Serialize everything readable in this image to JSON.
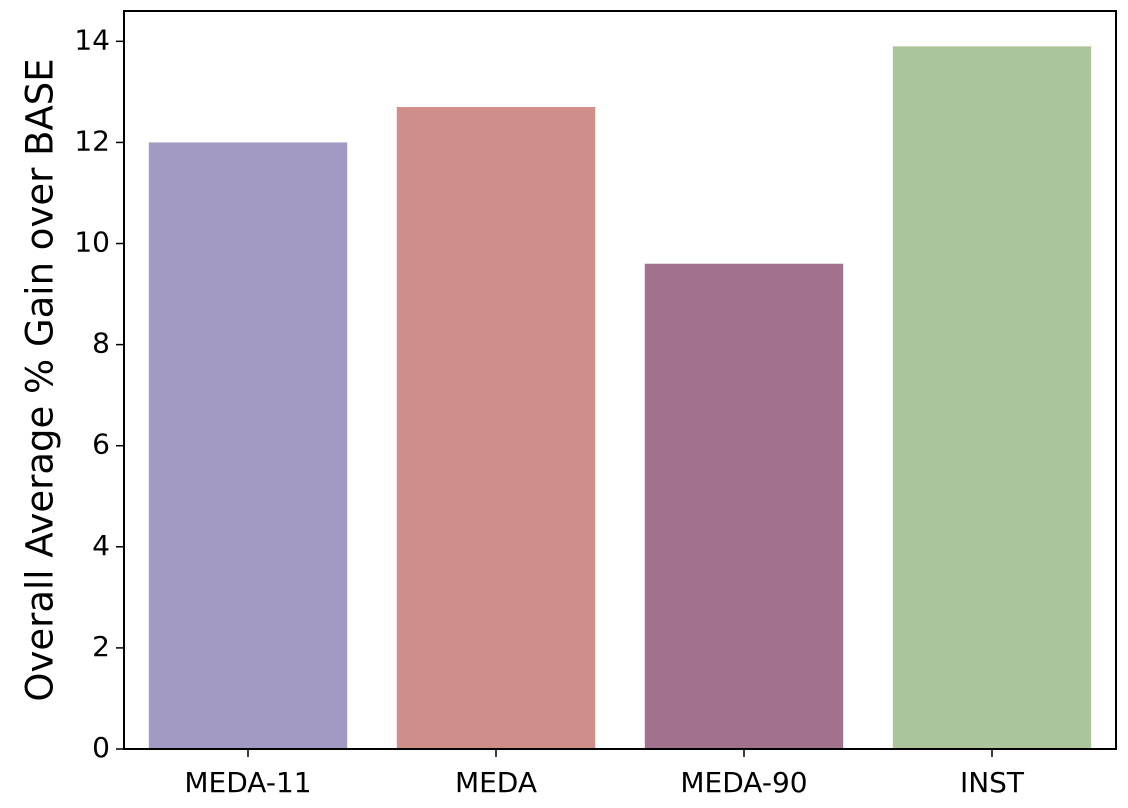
{
  "chart_data": {
    "type": "bar",
    "y_label": "Overall Average % Gain over BASE",
    "categories": [
      "MEDA-11",
      "MEDA",
      "MEDA-90",
      "INST"
    ],
    "values": [
      12.0,
      12.7,
      9.6,
      13.9
    ],
    "colors": [
      "#a29ac3",
      "#cf8e89",
      "#a2718b",
      "#abc49b"
    ],
    "ylim": [
      0,
      14.6
    ],
    "yticks": [
      0,
      2,
      4,
      6,
      8,
      10,
      12,
      14
    ],
    "grid": false
  }
}
